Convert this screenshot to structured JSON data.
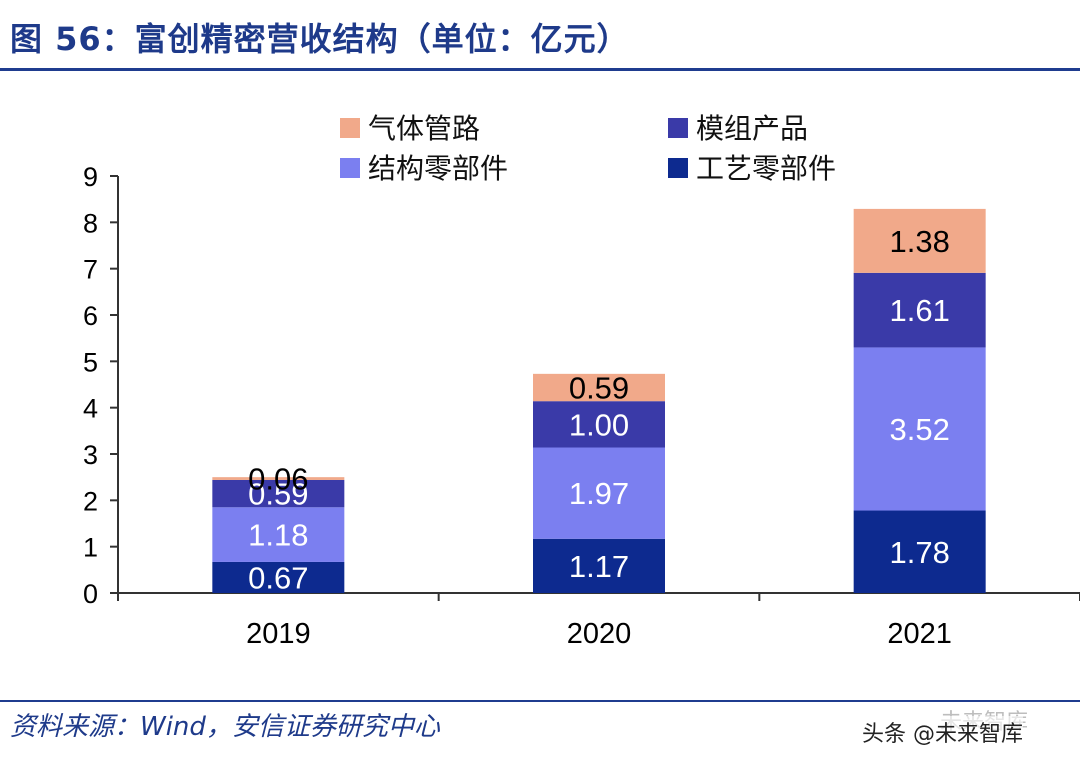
{
  "header": {
    "title": "图 56：富创精密营收结构（单位：亿元）"
  },
  "footer": {
    "source": "资料来源：Wind，安信证券研究中心",
    "watermark": "头条 @未来智库",
    "watermark_brand": "未来智库"
  },
  "chart_data": {
    "type": "bar",
    "stacked": true,
    "title": "富创精密营收结构（单位：亿元）",
    "categories": [
      "2019",
      "2020",
      "2021"
    ],
    "ylim": [
      0,
      9
    ],
    "yticks": [
      0,
      1,
      2,
      3,
      4,
      5,
      6,
      7,
      8,
      9
    ],
    "legend_position": "top",
    "series": [
      {
        "name": "工艺零部件",
        "color": "#0d2a8f",
        "label_color": "#ffffff",
        "values": [
          0.67,
          1.17,
          1.78
        ],
        "labels": [
          "0.67",
          "1.17",
          "1.78"
        ]
      },
      {
        "name": "结构零部件",
        "color": "#7b7ff0",
        "label_color": "#ffffff",
        "values": [
          1.18,
          1.97,
          3.52
        ],
        "labels": [
          "1.18",
          "1.97",
          "3.52"
        ]
      },
      {
        "name": "模组产品",
        "color": "#3a3aa8",
        "label_color": "#ffffff",
        "values": [
          0.59,
          1.0,
          1.61
        ],
        "labels": [
          "0.59",
          "1.00",
          "1.61"
        ]
      },
      {
        "name": "气体管路",
        "color": "#f1a98a",
        "label_color": "#000000",
        "values": [
          0.06,
          0.59,
          1.38
        ],
        "labels": [
          "0.06",
          "0.59",
          "1.38"
        ]
      }
    ],
    "legend_order": [
      "气体管路",
      "模组产品",
      "结构零部件",
      "工艺零部件"
    ]
  }
}
